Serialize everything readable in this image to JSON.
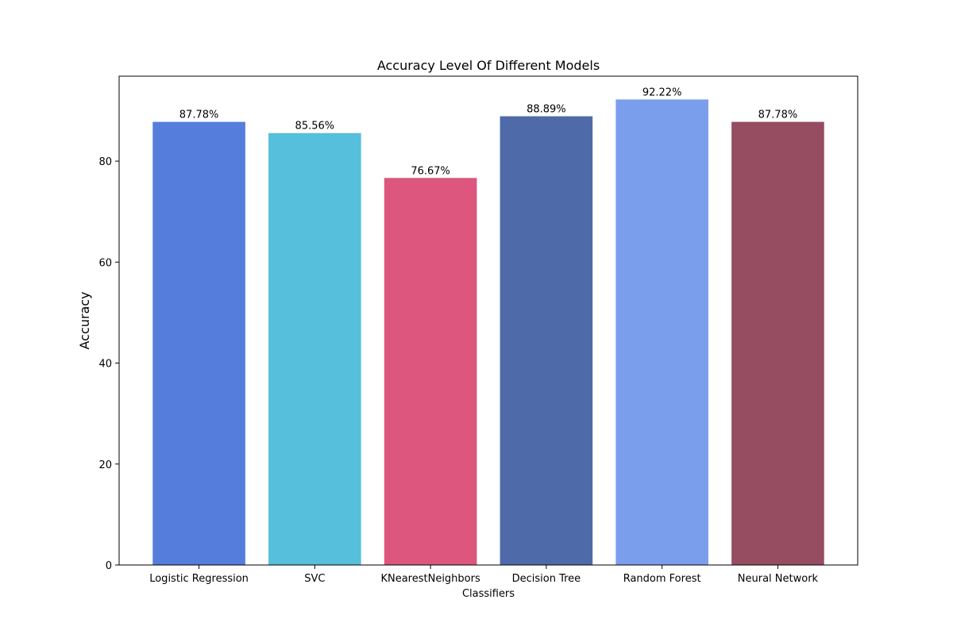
{
  "chart_data": {
    "type": "bar",
    "title": "Accuracy Level Of Different Models",
    "xlabel": "Classifiers",
    "ylabel": "Accuracy",
    "categories": [
      "Logistic Regression",
      "SVC",
      "KNearestNeighbors",
      "Decision Tree",
      "Random Forest",
      "Neural Network"
    ],
    "values": [
      87.78,
      85.56,
      76.67,
      88.89,
      92.22,
      87.78
    ],
    "value_labels": [
      "87.78%",
      "85.56%",
      "76.67%",
      "88.89%",
      "92.22%",
      "87.78%"
    ],
    "colors": [
      "#557ddc",
      "#56bfdc",
      "#dc567d",
      "#4f6aa9",
      "#7b9eec",
      "#964c61"
    ],
    "ylim": [
      0,
      96.83
    ],
    "yticks": [
      0,
      20,
      40,
      60,
      80
    ],
    "ytick_labels": [
      "0",
      "20",
      "40",
      "60",
      "80"
    ],
    "grid": false,
    "legend": "none"
  }
}
